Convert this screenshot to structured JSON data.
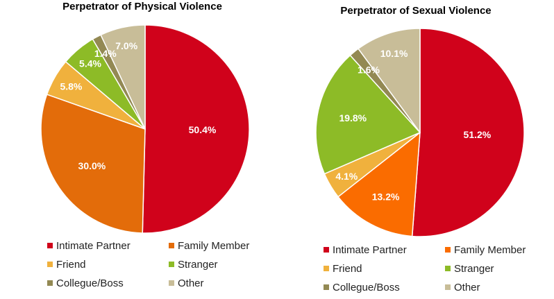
{
  "chart_data": [
    {
      "type": "pie",
      "title": "Perpetrator of Physical Violence",
      "categories": [
        "Intimate Partner",
        "Family Member",
        "Friend",
        "Stranger",
        "Collegue/Boss",
        "Other"
      ],
      "values": [
        50.4,
        30.0,
        5.8,
        5.4,
        1.4,
        7.0
      ],
      "labels": [
        "50.4%",
        "30.0%",
        "5.8%",
        "5.4%",
        "1.4%",
        "7.0%"
      ],
      "colors": [
        "#d0021b",
        "#e36c0a",
        "#f0b13d",
        "#8dbb27",
        "#938953",
        "#c8bd98"
      ],
      "legend_position": "bottom"
    },
    {
      "type": "pie",
      "title": "Perpetrator of Sexual Violence",
      "categories": [
        "Intimate Partner",
        "Family Member",
        "Friend",
        "Stranger",
        "Collegue/Boss",
        "Other"
      ],
      "values": [
        51.2,
        13.2,
        4.1,
        19.8,
        1.6,
        10.1
      ],
      "labels": [
        "51.2%",
        "13.2%",
        "4.1%",
        "19.8%",
        "1.6%",
        "10.1%"
      ],
      "colors": [
        "#d0021b",
        "#fa6c00",
        "#f0b13d",
        "#8dbb27",
        "#938953",
        "#c8bd98"
      ],
      "legend_position": "bottom"
    }
  ]
}
